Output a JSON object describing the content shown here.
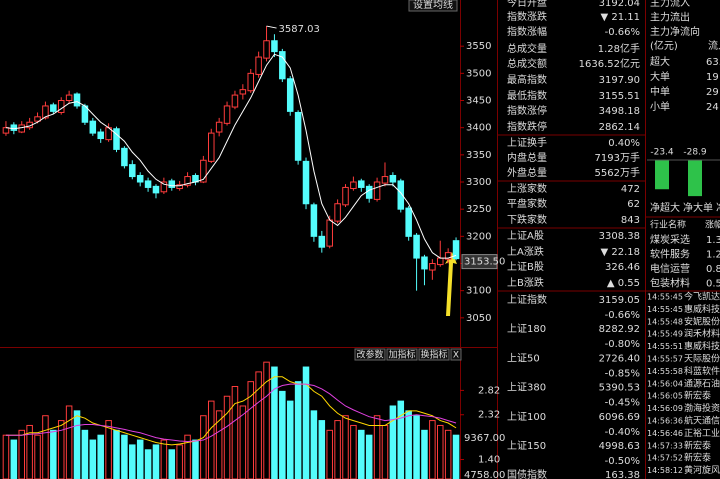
{
  "ui": {
    "chart": {
      "settings_button": "设置均线",
      "peak_label": "3587.03",
      "ylim": [
        3000,
        3635
      ],
      "yticks": [
        3050,
        3100,
        3150,
        3200,
        3250,
        3300,
        3350,
        3400,
        3450,
        3500,
        3550
      ],
      "price_label": {
        "value": 3153.5,
        "label": "3153.50"
      },
      "up_color": "#ff3c3c",
      "down_color": "#54fcfc",
      "ma_color": "#ffffff",
      "ohlc": [
        [
          3390,
          3412,
          3385,
          3400
        ],
        [
          3405,
          3410,
          3388,
          3395
        ],
        [
          3392,
          3412,
          3390,
          3405
        ],
        [
          3400,
          3418,
          3396,
          3410
        ],
        [
          3412,
          3428,
          3408,
          3420
        ],
        [
          3418,
          3448,
          3415,
          3440
        ],
        [
          3442,
          3446,
          3425,
          3430
        ],
        [
          3428,
          3456,
          3424,
          3450
        ],
        [
          3450,
          3468,
          3445,
          3460
        ],
        [
          3462,
          3465,
          3435,
          3440
        ],
        [
          3440,
          3444,
          3405,
          3410
        ],
        [
          3412,
          3418,
          3385,
          3390
        ],
        [
          3392,
          3398,
          3372,
          3380
        ],
        [
          3378,
          3408,
          3374,
          3400
        ],
        [
          3398,
          3402,
          3355,
          3360
        ],
        [
          3362,
          3366,
          3325,
          3330
        ],
        [
          3332,
          3340,
          3305,
          3310
        ],
        [
          3312,
          3318,
          3292,
          3300
        ],
        [
          3302,
          3308,
          3282,
          3290
        ],
        [
          3292,
          3296,
          3270,
          3280
        ],
        [
          3282,
          3308,
          3278,
          3300
        ],
        [
          3302,
          3306,
          3284,
          3290
        ],
        [
          3288,
          3302,
          3284,
          3295
        ],
        [
          3294,
          3318,
          3290,
          3310
        ],
        [
          3312,
          3316,
          3294,
          3300
        ],
        [
          3300,
          3348,
          3298,
          3340
        ],
        [
          3338,
          3398,
          3335,
          3390
        ],
        [
          3392,
          3418,
          3384,
          3410
        ],
        [
          3408,
          3448,
          3404,
          3440
        ],
        [
          3438,
          3468,
          3434,
          3460
        ],
        [
          3462,
          3480,
          3452,
          3470
        ],
        [
          3468,
          3508,
          3464,
          3500
        ],
        [
          3498,
          3540,
          3492,
          3530
        ],
        [
          3528,
          3587.03,
          3522,
          3560
        ],
        [
          3560,
          3572,
          3530,
          3540
        ],
        [
          3540,
          3545,
          3484,
          3490
        ],
        [
          3490,
          3495,
          3422,
          3430
        ],
        [
          3428,
          3432,
          3332,
          3340
        ],
        [
          3338,
          3345,
          3250,
          3260
        ],
        [
          3258,
          3262,
          3190,
          3200
        ],
        [
          3200,
          3210,
          3170,
          3180
        ],
        [
          3182,
          3238,
          3178,
          3230
        ],
        [
          3228,
          3268,
          3224,
          3260
        ],
        [
          3258,
          3296,
          3254,
          3290
        ],
        [
          3288,
          3310,
          3284,
          3300
        ],
        [
          3302,
          3306,
          3282,
          3290
        ],
        [
          3292,
          3296,
          3262,
          3270
        ],
        [
          3268,
          3308,
          3264,
          3300
        ],
        [
          3298,
          3336,
          3292,
          3310
        ],
        [
          3312,
          3318,
          3292,
          3300
        ],
        [
          3302,
          3306,
          3244,
          3250
        ],
        [
          3252,
          3256,
          3192,
          3200
        ],
        [
          3202,
          3206,
          3100,
          3160
        ],
        [
          3162,
          3166,
          3110,
          3140
        ],
        [
          3138,
          3158,
          3120,
          3150
        ],
        [
          3148,
          3192,
          3144,
          3160
        ],
        [
          3158,
          3178,
          3150,
          3170
        ],
        [
          3192,
          3198,
          3156,
          3159
        ]
      ],
      "ma": [
        3400,
        3398,
        3400,
        3403,
        3410,
        3420,
        3425,
        3435,
        3445,
        3448,
        3440,
        3425,
        3410,
        3400,
        3388,
        3375,
        3355,
        3340,
        3320,
        3305,
        3296,
        3293,
        3293,
        3297,
        3300,
        3305,
        3325,
        3345,
        3375,
        3405,
        3430,
        3455,
        3485,
        3515,
        3535,
        3530,
        3510,
        3460,
        3395,
        3320,
        3260,
        3230,
        3220,
        3235,
        3255,
        3275,
        3285,
        3290,
        3295,
        3295,
        3280,
        3260,
        3230,
        3195,
        3170,
        3160,
        3160,
        3165
      ]
    },
    "volume": {
      "buttons": [
        "改参数",
        "加指标",
        "换指标",
        "X"
      ],
      "ylim": [
        1.0,
        3.65
      ],
      "yticks": [
        2.82,
        2.32,
        {
          "value": 1.4,
          "label": "1.40"
        }
      ],
      "extra_labels": [
        "9367.00",
        "4758.00"
      ],
      "ma5_color": "#ffd700",
      "ma10_color": "#e040e0",
      "values": [
        1.9,
        1.8,
        2.0,
        2.1,
        1.9,
        2.3,
        2.0,
        2.2,
        2.5,
        2.4,
        2.0,
        1.8,
        1.9,
        2.2,
        2.0,
        1.9,
        1.7,
        1.8,
        1.6,
        1.7,
        1.8,
        1.6,
        1.7,
        1.9,
        1.8,
        2.3,
        2.6,
        2.4,
        2.7,
        2.9,
        2.5,
        3.0,
        3.2,
        3.4,
        3.3,
        2.8,
        2.6,
        3.0,
        3.3,
        2.4,
        2.2,
        2.0,
        2.2,
        2.3,
        2.1,
        2.0,
        1.9,
        2.3,
        2.1,
        2.5,
        2.6,
        2.4,
        2.3,
        2.0,
        2.2,
        2.1,
        2.0,
        1.9
      ],
      "ma5": [
        1.9,
        1.9,
        1.9,
        1.95,
        1.95,
        2.0,
        2.05,
        2.1,
        2.2,
        2.3,
        2.25,
        2.15,
        2.1,
        2.05,
        2.0,
        1.95,
        1.9,
        1.85,
        1.8,
        1.75,
        1.72,
        1.7,
        1.72,
        1.75,
        1.78,
        1.85,
        2.05,
        2.2,
        2.35,
        2.55,
        2.6,
        2.7,
        2.85,
        3.0,
        3.1,
        3.1,
        3.0,
        2.95,
        2.95,
        2.8,
        2.7,
        2.5,
        2.35,
        2.25,
        2.2,
        2.15,
        2.1,
        2.1,
        2.1,
        2.2,
        2.3,
        2.4,
        2.4,
        2.35,
        2.3,
        2.2,
        2.15,
        2.05
      ],
      "ma10": [
        1.9,
        1.9,
        1.9,
        1.92,
        1.93,
        1.95,
        1.97,
        2.0,
        2.05,
        2.1,
        2.12,
        2.12,
        2.1,
        2.08,
        2.05,
        2.02,
        1.98,
        1.95,
        1.9,
        1.85,
        1.82,
        1.8,
        1.78,
        1.77,
        1.78,
        1.8,
        1.88,
        1.98,
        2.08,
        2.2,
        2.32,
        2.45,
        2.58,
        2.7,
        2.85,
        2.92,
        2.95,
        2.95,
        2.95,
        2.92,
        2.85,
        2.75,
        2.62,
        2.5,
        2.42,
        2.35,
        2.28,
        2.24,
        2.2,
        2.22,
        2.25,
        2.3,
        2.32,
        2.3,
        2.28,
        2.25,
        2.2,
        2.15
      ]
    },
    "index_info": [
      {
        "label": "今日开盘",
        "value": "3192.04",
        "color": "#ff3c3c"
      },
      {
        "label": "指数涨跌",
        "value": "▼ 21.11",
        "color": "#3ce03c"
      },
      {
        "label": "指数涨幅",
        "value": "-0.66%",
        "color": "#3ce03c"
      },
      {
        "label": "总成交量",
        "value": "1.28亿手",
        "color": "#ffffff"
      },
      {
        "label": "总成交额",
        "value": "1636.52亿元",
        "color": "#54fcfc"
      },
      {
        "label": "最高指数",
        "value": "3197.90",
        "color": "#ff3c3c"
      },
      {
        "label": "最低指数",
        "value": "3155.51",
        "color": "#3ce03c"
      },
      {
        "label": "指数涨停",
        "value": "3498.18",
        "color": "#ff3c3c"
      },
      {
        "label": "指数跌停",
        "value": "2862.14",
        "color": "#3ce03c"
      },
      {
        "label": "上证换手",
        "value": "0.40%",
        "color": "#ffffff"
      },
      {
        "label": "内盘总量",
        "value": "7193万手",
        "color": "#3ce03c"
      },
      {
        "label": "外盘总量",
        "value": "5562万手",
        "color": "#ff3c3c"
      },
      {
        "label": "上涨家数",
        "value": "472",
        "color": "#ff3c3c"
      },
      {
        "label": "平盘家数",
        "value": "62",
        "color": "#ffffff"
      },
      {
        "label": "下跌家数",
        "value": "843",
        "color": "#3ce03c"
      },
      {
        "label": "上证A股",
        "value": "3308.38",
        "color": "#ffffff"
      },
      {
        "label": "上A涨跌",
        "value": "▼ 22.18",
        "color": "#3ce03c"
      },
      {
        "label": "上证B股",
        "value": "326.46",
        "color": "#ff3c3c"
      },
      {
        "label": "上B涨跌",
        "value": "▲ 0.55",
        "color": "#ff3c3c"
      }
    ],
    "index_list": [
      {
        "name": "上证指数",
        "value": "3159.05",
        "change": "-0.66%"
      },
      {
        "name": "上证180",
        "value": "8282.92",
        "change": "-0.80%"
      },
      {
        "name": "上证50",
        "value": "2726.40",
        "change": "-0.85%"
      },
      {
        "name": "上证380",
        "value": "5390.53",
        "change": "-0.45%"
      },
      {
        "name": "上证100",
        "value": "6096.69",
        "change": "-0.40%"
      },
      {
        "name": "上证150",
        "value": "4998.63",
        "change": "-0.50%"
      },
      {
        "name": "国债指数",
        "value": "163.38"
      }
    ],
    "fund_flow": {
      "rows": [
        "主力流入",
        "主力流出",
        "主力净流向"
      ],
      "unit": "(亿元)",
      "column": "流入",
      "breakdown": [
        {
          "label": "超大",
          "value": 63.2
        },
        {
          "label": "大单",
          "value": 19
        },
        {
          "label": "中单",
          "value": 29
        },
        {
          "label": "小单",
          "value": 24
        }
      ],
      "net": {
        "categories": [
          "净超大",
          "净大单",
          "净"
        ],
        "values": [
          -23.4,
          -28.9,
          -2.1
        ],
        "color": "#2ec24a"
      }
    },
    "industry": {
      "header": [
        "行业名称",
        "涨幅"
      ],
      "rows": [
        [
          "煤炭采选",
          1.3
        ],
        [
          "软件服务",
          1.2
        ],
        [
          "电信运营",
          0.8
        ],
        [
          "包装材料",
          0.5
        ]
      ]
    },
    "ticks": [
      {
        "time": "14:55:45",
        "name": "今飞凯达",
        "color": "#ffd700"
      },
      {
        "time": "14:55:45",
        "name": "惠威科技",
        "color": "#ff3c3c"
      },
      {
        "time": "14:55:48",
        "name": "安妮股份",
        "color": "#ff3c3c"
      },
      {
        "time": "14:55:49",
        "name": "润禾材料",
        "color": "#ff3c3c"
      },
      {
        "time": "14:55:51",
        "name": "惠威科技",
        "color": "#ffd700"
      },
      {
        "time": "14:55:57",
        "name": "天际股份",
        "color": "#ffd700"
      },
      {
        "time": "14:55:58",
        "name": "科蓝软件",
        "color": "#ffd700"
      },
      {
        "time": "14:56:04",
        "name": "通源石油",
        "color": "#ff3c3c"
      },
      {
        "time": "14:56:05",
        "name": "新宏泰",
        "color": "#ff3c3c"
      },
      {
        "time": "14:56:09",
        "name": "渤海投资",
        "color": "#ff3c3c"
      },
      {
        "time": "14:56:36",
        "name": "航天通信",
        "color": "#ffd700"
      },
      {
        "time": "14:56:46",
        "name": "正裕工业",
        "color": "#ff3c3c"
      },
      {
        "time": "14:57:33",
        "name": "新宏泰",
        "color": "#ffd700"
      },
      {
        "time": "14:57:52",
        "name": "新宏泰",
        "color": "#ffd700"
      },
      {
        "time": "14:58:12",
        "name": "黄河旋风",
        "color": "#ffd700"
      }
    ]
  }
}
